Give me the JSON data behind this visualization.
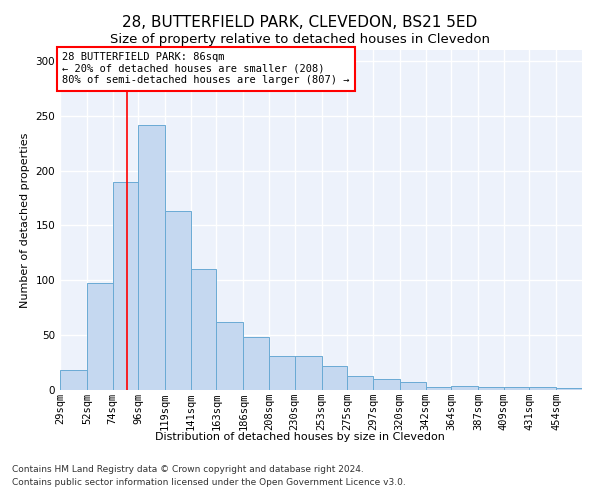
{
  "title": "28, BUTTERFIELD PARK, CLEVEDON, BS21 5ED",
  "subtitle": "Size of property relative to detached houses in Clevedon",
  "xlabel": "Distribution of detached houses by size in Clevedon",
  "ylabel": "Number of detached properties",
  "footer_line1": "Contains HM Land Registry data © Crown copyright and database right 2024.",
  "footer_line2": "Contains public sector information licensed under the Open Government Licence v3.0.",
  "bin_edges": [
    29,
    52,
    74,
    96,
    119,
    141,
    163,
    186,
    208,
    230,
    253,
    275,
    297,
    320,
    342,
    364,
    387,
    409,
    431,
    454,
    476
  ],
  "bar_heights": [
    18,
    98,
    190,
    242,
    163,
    110,
    62,
    48,
    31,
    31,
    22,
    13,
    10,
    7,
    3,
    4,
    3,
    3,
    3,
    2
  ],
  "bar_color": "#c5d8f0",
  "bar_edge_color": "#6aaad4",
  "red_line_x": 86,
  "annotation_text": "28 BUTTERFIELD PARK: 86sqm\n← 20% of detached houses are smaller (208)\n80% of semi-detached houses are larger (807) →",
  "annotation_box_color": "white",
  "annotation_box_edge_color": "red",
  "ylim": [
    0,
    310
  ],
  "yticks": [
    0,
    50,
    100,
    150,
    200,
    250,
    300
  ],
  "background_color": "#edf2fb",
  "grid_color": "white",
  "title_fontsize": 11,
  "subtitle_fontsize": 9.5,
  "axis_label_fontsize": 8,
  "tick_fontsize": 7.5,
  "annotation_fontsize": 7.5,
  "footer_fontsize": 6.5
}
